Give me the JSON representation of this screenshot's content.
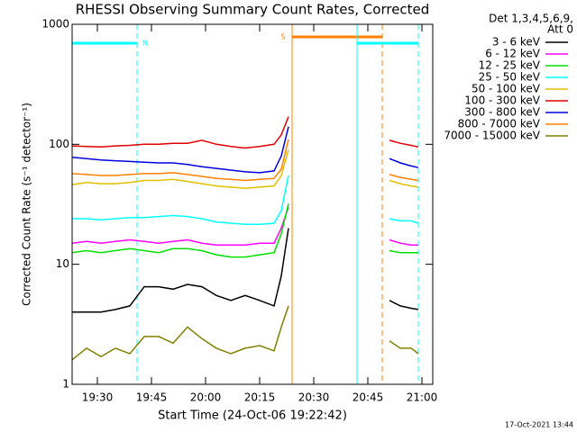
{
  "chart_data": {
    "type": "line",
    "title": "RHESSI Observing Summary Count Rates, Corrected",
    "x_label": "Start Time (24-Oct-06 19:22:42)",
    "y_label": "Corrected Count Rate (s⁻¹ detector⁻¹)",
    "legend_title": [
      "Det 1,3,4,5,6,9,",
      "Att 0"
    ],
    "footer": "17-Oct-2021 13:44",
    "log_y": true,
    "legend": "right",
    "x": [
      "19:23",
      "19:27",
      "19:31",
      "19:35",
      "19:39",
      "19:43",
      "19:47",
      "19:51",
      "19:55",
      "19:59",
      "20:03",
      "20:07",
      "20:11",
      "20:15",
      "20:19",
      "20:21",
      "20:23",
      "20:35",
      "20:51",
      "20:54",
      "20:57",
      "20:59"
    ],
    "xlim": [
      "19:23",
      "21:03"
    ],
    "xticks": [
      "19:30",
      "19:45",
      "20:00",
      "20:15",
      "20:30",
      "20:45",
      "21:00"
    ],
    "ylim": [
      1,
      1000
    ],
    "yticks": [
      1,
      10,
      100,
      1000
    ],
    "series": [
      {
        "name": "3 - 6 keV",
        "color": "#000000",
        "values": [
          4,
          4,
          4,
          4.2,
          4.5,
          6.5,
          6.5,
          6.2,
          6.8,
          6.5,
          5.5,
          5,
          5.5,
          5,
          4.5,
          8,
          20,
          null,
          5,
          4.5,
          4.3,
          4.2
        ]
      },
      {
        "name": "6 - 12 keV",
        "color": "#ff00ff",
        "values": [
          15,
          15.5,
          15,
          15.5,
          16,
          15.5,
          15,
          15.5,
          16,
          15,
          14.5,
          14.5,
          14.5,
          15,
          15,
          20,
          30,
          null,
          16,
          15,
          14.5,
          14.5
        ]
      },
      {
        "name": "12 - 25 keV",
        "color": "#00e000",
        "values": [
          12.5,
          13,
          12.5,
          13,
          13.5,
          13,
          12.5,
          13.5,
          13.5,
          13,
          12,
          11.5,
          11.5,
          12,
          12.5,
          18,
          32,
          null,
          13,
          12.5,
          12.5,
          12.5
        ]
      },
      {
        "name": "25 - 50 keV",
        "color": "#00ffff",
        "values": [
          24,
          24,
          23.5,
          24,
          24.5,
          24.5,
          25,
          25.5,
          25,
          24,
          22.5,
          22,
          21.5,
          21.5,
          22,
          28,
          55,
          null,
          24,
          23,
          23,
          22
        ]
      },
      {
        "name": "50 - 100 keV",
        "color": "#e0c000",
        "values": [
          46,
          48,
          47,
          47,
          48,
          50,
          50,
          51,
          49,
          47,
          45,
          44,
          43,
          44,
          45,
          55,
          90,
          null,
          50,
          47,
          45,
          44
        ]
      },
      {
        "name": "100 - 300 keV",
        "color": "#e00000",
        "values": [
          97,
          96,
          95,
          97,
          98,
          100,
          100,
          102,
          102,
          108,
          100,
          96,
          93,
          96,
          100,
          120,
          170,
          null,
          108,
          102,
          98,
          95
        ]
      },
      {
        "name": "300 - 800 keV",
        "color": "#0000e0",
        "values": [
          78,
          76,
          74,
          73,
          72,
          71,
          70,
          70,
          68,
          65,
          63,
          61,
          59,
          58,
          60,
          80,
          140,
          null,
          76,
          70,
          66,
          64
        ]
      },
      {
        "name": "800 - 7000 keV",
        "color": "#ff8000",
        "values": [
          57,
          56,
          55,
          55,
          56,
          57,
          57,
          58,
          56,
          54,
          52,
          51,
          50,
          51,
          52,
          62,
          110,
          null,
          56,
          53,
          51,
          50
        ]
      },
      {
        "name": "7000 - 15000 keV",
        "color": "#808000",
        "values": [
          1.6,
          2,
          1.7,
          2,
          1.8,
          2.5,
          2.5,
          2.2,
          3,
          2.4,
          2,
          1.8,
          2,
          2.1,
          1.9,
          3,
          4.5,
          null,
          2.3,
          2,
          2,
          1.8
        ]
      }
    ],
    "annotations": [
      {
        "text": "N",
        "color": "#00ffff",
        "start": "19:23",
        "end": "19:41"
      },
      {
        "text": "S",
        "color": "#ff8000",
        "start": "20:24",
        "end": "20:49"
      },
      {
        "color": "#00ffff",
        "start": "20:42",
        "end": "20:59"
      }
    ]
  }
}
